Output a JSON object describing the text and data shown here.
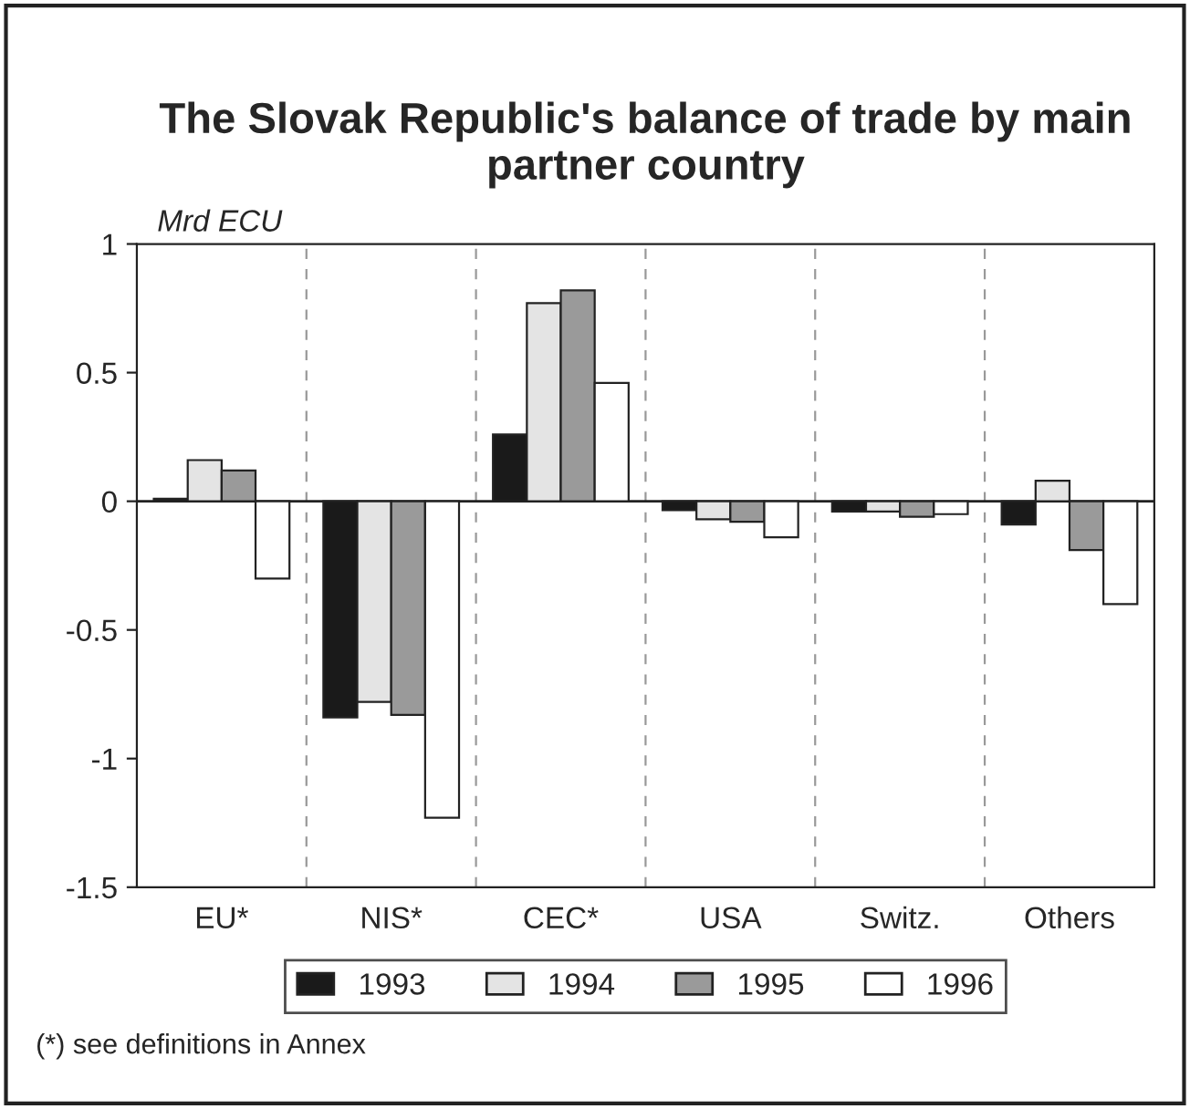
{
  "chart_data": {
    "type": "bar",
    "title": "The Slovak Republic's balance of trade by main partner country",
    "ylabel": "Mrd ECU",
    "categories": [
      "EU*",
      "NIS*",
      "CEC*",
      "USA",
      "Switz.",
      "Others"
    ],
    "series": [
      {
        "name": "1993",
        "color": "#1a1a1a",
        "values": [
          0.01,
          -0.84,
          0.26,
          -0.035,
          -0.04,
          -0.09
        ]
      },
      {
        "name": "1994",
        "color": "#e4e4e4",
        "values": [
          0.16,
          -0.78,
          0.77,
          -0.07,
          -0.04,
          0.08
        ]
      },
      {
        "name": "1995",
        "color": "#9a9a9a",
        "values": [
          0.12,
          -0.83,
          0.82,
          -0.08,
          -0.06,
          -0.19
        ]
      },
      {
        "name": "1996",
        "color": "#ffffff",
        "values": [
          -0.3,
          -1.23,
          0.46,
          -0.14,
          -0.05,
          -0.4
        ]
      }
    ],
    "ylim": [
      -1.5,
      1
    ],
    "yticks": [
      -1.5,
      -1,
      -0.5,
      0,
      0.5,
      1
    ],
    "grid": "x",
    "legend": "bottom",
    "annotations": [
      "(*) see definitions in Annex"
    ]
  }
}
